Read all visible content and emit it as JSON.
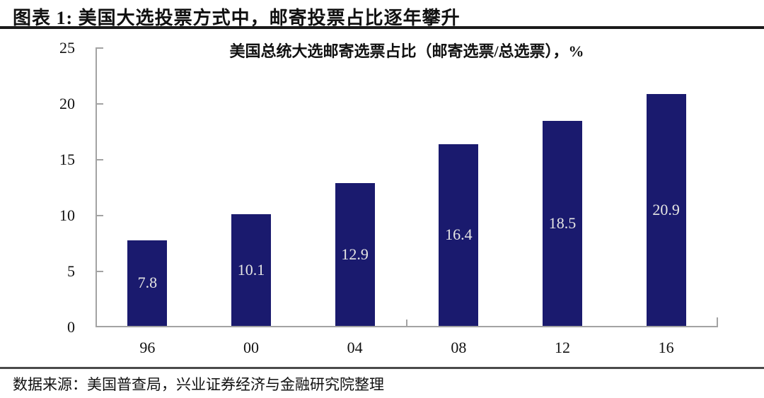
{
  "header": {
    "title": "图表 1: 美国大选投票方式中，邮寄投票占比逐年攀升"
  },
  "chart_data": {
    "type": "bar",
    "title": "美国总统大选邮寄选票占比（邮寄选票/总选票），%",
    "categories": [
      "96",
      "00",
      "04",
      "08",
      "12",
      "16"
    ],
    "values": [
      7.8,
      10.1,
      12.9,
      16.4,
      18.5,
      20.9
    ],
    "ylim": [
      0,
      25
    ],
    "yticks": [
      0,
      5,
      10,
      15,
      20,
      25
    ],
    "grid": false,
    "legend_position": "none",
    "bar_color": "#1a1a6e",
    "bar_label_color": "#e6e6e4",
    "axis_color": "#a3a3a3"
  },
  "footer": {
    "source": "数据来源：美国普查局，兴业证券经济与金融研究院整理"
  }
}
